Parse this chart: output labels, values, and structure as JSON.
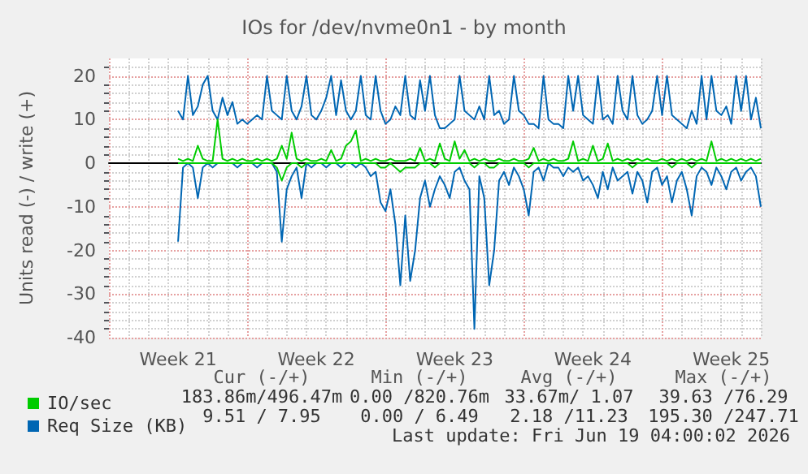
{
  "chart_data": {
    "type": "line",
    "title": "IOs for /dev/nvme0n1 - by month",
    "ylabel": "Units read (-) / write (+)",
    "categories": [
      null,
      null,
      null,
      null,
      null,
      null,
      null,
      null,
      null,
      null,
      null,
      null,
      null,
      null,
      "Week 21",
      null,
      null,
      null,
      null,
      null,
      null,
      null,
      null,
      null,
      null,
      null,
      null,
      null,
      null,
      null,
      null,
      null,
      null,
      null,
      null,
      null,
      null,
      null,
      null,
      null,
      null,
      null,
      "Week 22",
      null,
      null,
      null,
      null,
      null,
      null,
      null,
      null,
      null,
      null,
      null,
      null,
      null,
      null,
      null,
      null,
      null,
      null,
      null,
      null,
      null,
      null,
      null,
      null,
      null,
      null,
      null,
      "Week 23",
      null,
      null,
      null,
      null,
      null,
      null,
      null,
      null,
      null,
      null,
      null,
      null,
      null,
      null,
      null,
      null,
      null,
      null,
      null,
      null,
      null,
      null,
      null,
      null,
      null,
      null,
      null,
      "Week 24",
      null,
      null,
      null,
      null,
      null,
      null,
      null,
      null,
      null,
      null,
      null,
      null,
      null,
      null,
      null,
      null,
      null,
      null,
      null,
      null,
      null,
      null,
      null,
      null,
      null,
      null,
      null,
      "Week 25",
      null,
      null,
      null,
      null,
      null,
      null
    ],
    "series": [
      {
        "name": "IO/sec",
        "color": "#00cc00",
        "values": [
          null,
          null,
          null,
          null,
          null,
          null,
          null,
          null,
          null,
          null,
          null,
          null,
          null,
          null,
          1,
          0.5,
          1,
          0.5,
          4,
          1,
          0.5,
          0.5,
          10,
          1,
          0.5,
          1,
          0.5,
          1,
          0.5,
          0.5,
          1,
          0.5,
          1,
          0.5,
          1,
          4,
          1,
          7,
          1,
          0.5,
          1,
          0.5,
          0.5,
          1,
          0.5,
          3,
          0.5,
          1,
          4,
          5,
          7.5,
          0.5,
          1,
          0.5,
          1,
          0.5,
          0.5,
          1,
          0.5,
          0.5,
          0.5,
          1,
          0.5,
          3.5,
          0.5,
          1,
          0.5,
          4.5,
          1,
          0.5,
          5,
          1,
          3,
          0.5,
          1,
          0.5,
          1,
          0.5,
          0.5,
          1,
          0.5,
          0.5,
          1,
          0.5,
          0.5,
          1,
          3.5,
          0.5,
          1,
          0.5,
          1,
          0.5,
          0.5,
          1,
          5,
          0.5,
          1,
          0.5,
          4,
          0.5,
          1,
          4.5,
          0.5,
          1,
          0.5,
          1,
          0.5,
          1,
          0.5,
          1,
          0.5,
          0.5,
          1,
          0.5,
          1,
          0.5,
          1,
          0.5,
          1,
          0.5,
          1,
          0.5,
          5,
          0.5,
          1,
          0.5,
          1,
          0.5,
          1,
          0.5,
          1,
          0.5,
          1
        ]
      },
      {
        "color": "#00cc00",
        "values": [
          null,
          null,
          null,
          null,
          null,
          null,
          null,
          null,
          null,
          null,
          null,
          null,
          null,
          null,
          0,
          0,
          0,
          0,
          0,
          0,
          0,
          0,
          0,
          0,
          0,
          0,
          0,
          0,
          0,
          0,
          0,
          0,
          0,
          0,
          -1,
          -4,
          -1,
          0,
          0,
          -1,
          0,
          0,
          0,
          0,
          0,
          0,
          0,
          0,
          0,
          0,
          0,
          0,
          0,
          0,
          0,
          -1,
          -1,
          0,
          -1,
          -2,
          -1,
          -1,
          -1,
          0,
          0,
          0,
          -1,
          0,
          0,
          0,
          0,
          0,
          0,
          0,
          -1,
          0,
          0,
          -1,
          -1,
          0,
          0,
          0,
          0,
          0,
          0,
          -1,
          0,
          0,
          0,
          0,
          0,
          0,
          0,
          0,
          0,
          0,
          0,
          0,
          0,
          0,
          0,
          0,
          0,
          0,
          0,
          0,
          -1,
          0,
          0,
          0,
          0,
          0,
          0,
          0,
          -1,
          0,
          0,
          0,
          -1,
          0,
          0,
          0,
          0,
          0,
          0,
          0,
          0,
          0,
          0,
          0,
          0,
          0,
          0
        ]
      },
      {
        "name": "Req Size (KB)",
        "color": "#0066b3",
        "values": [
          null,
          null,
          null,
          null,
          null,
          null,
          null,
          null,
          null,
          null,
          null,
          null,
          null,
          null,
          12,
          10,
          20,
          11,
          13,
          18,
          20,
          12,
          10,
          15,
          11,
          14,
          9,
          10,
          9,
          10,
          11,
          10,
          20,
          12,
          11,
          10,
          20,
          12,
          10,
          13,
          20,
          11,
          10,
          12,
          15,
          20,
          11,
          19,
          12,
          10,
          12,
          20,
          11,
          10,
          20,
          12,
          9,
          10,
          13,
          11,
          20,
          11,
          10,
          19,
          12,
          20,
          11,
          8,
          8,
          9,
          10,
          20,
          12,
          11,
          10,
          13,
          10,
          20,
          11,
          12,
          9,
          10,
          20,
          12,
          11,
          9,
          9,
          8,
          20,
          10,
          9,
          9,
          8,
          20,
          12,
          20,
          11,
          10,
          9,
          20,
          10,
          11,
          9,
          20,
          12,
          10,
          20,
          11,
          9,
          10,
          12,
          20,
          11,
          20,
          11,
          10,
          9,
          8,
          12,
          9,
          20,
          10,
          20,
          12,
          11,
          13,
          9,
          20,
          12,
          20,
          10,
          15,
          8
        ]
      },
      {
        "color": "#0066b3",
        "values": [
          null,
          null,
          null,
          null,
          null,
          null,
          null,
          null,
          null,
          null,
          null,
          null,
          null,
          null,
          -18,
          -1,
          0,
          -1,
          -8,
          -1,
          0,
          -1,
          0,
          0,
          0,
          0,
          -1,
          0,
          0,
          0,
          -1,
          0,
          0,
          0,
          -2,
          -18,
          -6,
          -3,
          -1,
          -8,
          0,
          -1,
          0,
          0,
          -1,
          0,
          0,
          -1,
          0,
          0,
          -1,
          0,
          -1,
          -3,
          -2,
          -9,
          -11,
          -6,
          -14,
          -28,
          -12,
          -27,
          -20,
          -8,
          -4,
          -10,
          -6,
          -3,
          -5,
          -8,
          -2,
          -1,
          -4,
          -6,
          -38,
          -3,
          -8,
          -28,
          -20,
          -4,
          -2,
          -5,
          -1,
          -3,
          -6,
          -12,
          -2,
          -1,
          -4,
          0,
          -1,
          -1,
          -3,
          -1,
          -2,
          -1,
          -4,
          -3,
          -5,
          -8,
          -2,
          -6,
          -1,
          -4,
          -3,
          -2,
          -7,
          -2,
          -4,
          -9,
          -2,
          -1,
          -5,
          -3,
          -9,
          -4,
          -2,
          -6,
          -12,
          -3,
          -1,
          -2,
          -5,
          -1,
          -3,
          -6,
          -2,
          -1,
          -4,
          -2,
          -1,
          -3,
          -10
        ]
      }
    ],
    "ylim": [
      -40,
      24
    ],
    "yticks": [
      -40,
      -30,
      -20,
      -10,
      0,
      10,
      20
    ],
    "grid": true,
    "legend": "bottom left",
    "marker": "none",
    "annotations": [
      "Cur (-/+)",
      "Min (-/+)",
      "Avg (-/+)",
      "Max (-/+)",
      "183.86m/496.47m",
      "0.00 /820.76m",
      "33.67m/ 1.07",
      "39.63 /76.29",
      "9.51 / 7.95",
      "0.00 / 6.49",
      "2.18 /11.23",
      "195.30 /247.71",
      "Last update: Fri Jun 19 04:00:02 2026"
    ]
  }
}
